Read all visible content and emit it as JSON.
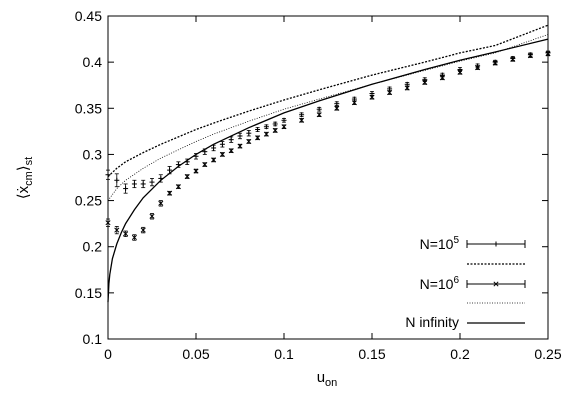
{
  "chart_data": {
    "type": "line",
    "ylabel": "⟨ẋ",
    "ylabel_sub1": "cm",
    "ylabel_tail": "⟩",
    "ylabel_sub2": "st",
    "xlabel": "u",
    "xlabel_sub": "on",
    "xlim": [
      0,
      0.25
    ],
    "ylim": [
      0.1,
      0.45
    ],
    "x_ticks": [
      "0",
      "0.05",
      "0.1",
      "0.15",
      "0.2",
      "0.25"
    ],
    "y_ticks": [
      "0.1",
      "0.15",
      "0.2",
      "0.25",
      "0.3",
      "0.35",
      "0.4",
      "0.45"
    ],
    "grid": false,
    "legend_position": "bottom-right",
    "series": [
      {
        "name": "N=10",
        "name_sup": "5",
        "kind": "points-errorbars",
        "marker": "plus",
        "x": [
          0,
          0.005,
          0.01,
          0.015,
          0.02,
          0.025,
          0.03,
          0.035,
          0.04,
          0.045,
          0.05,
          0.055,
          0.06,
          0.065,
          0.07,
          0.075,
          0.08,
          0.085,
          0.09,
          0.095,
          0.1,
          0.11,
          0.12,
          0.13,
          0.14,
          0.15,
          0.16,
          0.17,
          0.18,
          0.19,
          0.2,
          0.21,
          0.22,
          0.23,
          0.24,
          0.25
        ],
        "y": [
          0.278,
          0.272,
          0.263,
          0.268,
          0.268,
          0.27,
          0.274,
          0.283,
          0.289,
          0.292,
          0.298,
          0.303,
          0.307,
          0.311,
          0.316,
          0.32,
          0.323,
          0.327,
          0.33,
          0.333,
          0.337,
          0.343,
          0.349,
          0.355,
          0.36,
          0.366,
          0.371,
          0.376,
          0.381,
          0.386,
          0.392,
          0.396,
          0.4,
          0.404,
          0.408,
          0.41
        ],
        "err": [
          0.005,
          0.007,
          0.005,
          0.004,
          0.004,
          0.004,
          0.004,
          0.004,
          0.003,
          0.003,
          0.003,
          0.003,
          0.003,
          0.003,
          0.003,
          0.003,
          0.003,
          0.002,
          0.002,
          0.002,
          0.002,
          0.002,
          0.002,
          0.002,
          0.002,
          0.002,
          0.002,
          0.002,
          0.002,
          0.002,
          0.002,
          0.002,
          0.002,
          0.002,
          0.002,
          0.002
        ]
      },
      {
        "name": "",
        "kind": "line",
        "style": "dashed-dense",
        "legend_slot": 1,
        "x": [
          0,
          0.005,
          0.01,
          0.02,
          0.03,
          0.04,
          0.05,
          0.06,
          0.08,
          0.1,
          0.12,
          0.15,
          0.18,
          0.2,
          0.22,
          0.25
        ],
        "y": [
          0.276,
          0.285,
          0.292,
          0.302,
          0.311,
          0.319,
          0.327,
          0.334,
          0.347,
          0.359,
          0.37,
          0.386,
          0.4,
          0.41,
          0.418,
          0.44
        ]
      },
      {
        "name": "N=10",
        "name_sup": "6",
        "kind": "points-errorbars",
        "marker": "cross",
        "x": [
          0,
          0.005,
          0.01,
          0.015,
          0.02,
          0.025,
          0.03,
          0.035,
          0.04,
          0.045,
          0.05,
          0.055,
          0.06,
          0.065,
          0.07,
          0.075,
          0.08,
          0.085,
          0.09,
          0.095,
          0.1,
          0.11,
          0.12,
          0.13,
          0.14,
          0.15,
          0.16,
          0.17,
          0.18,
          0.19,
          0.2,
          0.21,
          0.22,
          0.23,
          0.24,
          0.25
        ],
        "y": [
          0.226,
          0.218,
          0.214,
          0.21,
          0.218,
          0.233,
          0.247,
          0.258,
          0.265,
          0.276,
          0.282,
          0.289,
          0.294,
          0.3,
          0.304,
          0.309,
          0.314,
          0.318,
          0.322,
          0.326,
          0.33,
          0.337,
          0.343,
          0.35,
          0.356,
          0.362,
          0.367,
          0.372,
          0.378,
          0.383,
          0.389,
          0.394,
          0.399,
          0.403,
          0.407,
          0.409
        ],
        "err": [
          0.004,
          0.004,
          0.003,
          0.003,
          0.003,
          0.003,
          0.003,
          0.002,
          0.002,
          0.002,
          0.002,
          0.002,
          0.002,
          0.002,
          0.002,
          0.002,
          0.002,
          0.002,
          0.002,
          0.002,
          0.002,
          0.002,
          0.002,
          0.002,
          0.002,
          0.002,
          0.002,
          0.002,
          0.002,
          0.002,
          0.002,
          0.002,
          0.002,
          0.002,
          0.002,
          0.002
        ]
      },
      {
        "name": "",
        "kind": "line",
        "style": "dotted",
        "legend_slot": 3,
        "x": [
          0,
          0.005,
          0.01,
          0.02,
          0.03,
          0.04,
          0.05,
          0.06,
          0.08,
          0.1,
          0.12,
          0.15,
          0.18,
          0.2,
          0.22,
          0.25
        ],
        "y": [
          0.25,
          0.263,
          0.272,
          0.285,
          0.296,
          0.305,
          0.314,
          0.322,
          0.336,
          0.349,
          0.36,
          0.376,
          0.391,
          0.401,
          0.41,
          0.43
        ]
      },
      {
        "name": "N infinity",
        "kind": "line",
        "style": "solid",
        "x": [
          0,
          0.0005,
          0.001,
          0.0025,
          0.005,
          0.0075,
          0.01,
          0.015,
          0.02,
          0.03,
          0.04,
          0.05,
          0.06,
          0.08,
          0.1,
          0.12,
          0.15,
          0.18,
          0.2,
          0.22,
          0.25
        ],
        "y": [
          0.14,
          0.16,
          0.17,
          0.187,
          0.203,
          0.215,
          0.225,
          0.24,
          0.253,
          0.272,
          0.287,
          0.3,
          0.311,
          0.329,
          0.345,
          0.358,
          0.376,
          0.392,
          0.402,
          0.411,
          0.425
        ]
      }
    ]
  }
}
